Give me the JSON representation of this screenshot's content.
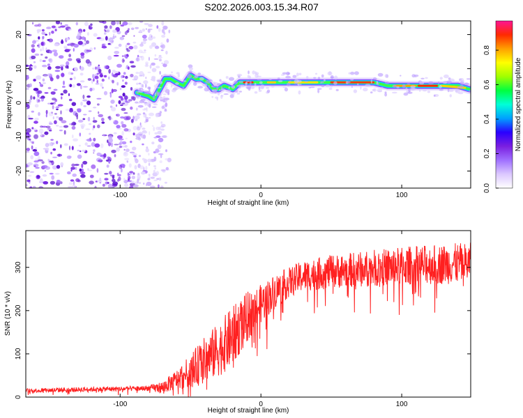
{
  "title": "S202.2026.003.15.34.R07",
  "chart_data": [
    {
      "type": "heatmap",
      "name": "spectrogram",
      "xlabel": "Height of straight line (km)",
      "ylabel": "Frequency (Hz)",
      "xlim": [
        -167,
        149
      ],
      "ylim": [
        -25,
        24
      ],
      "xticks": [
        -100,
        0,
        100
      ],
      "xtick_labels": [
        "-100",
        "0",
        "100"
      ],
      "yticks": [
        -20,
        -10,
        0,
        10,
        20
      ],
      "ytick_labels": [
        "-20",
        "-10",
        "0",
        "10",
        "20"
      ],
      "colorbar": {
        "label": "Normalized spectral amplitude",
        "range": [
          0,
          0.97
        ],
        "ticks": [
          0.0,
          0.2,
          0.4,
          0.6,
          0.8
        ],
        "tick_labels": [
          "0.0",
          "0.2",
          "0.4",
          "0.6",
          "0.8"
        ],
        "colors": [
          "#ffffff",
          "#dcc8ff",
          "#a070ff",
          "#7a1fe0",
          "#2a00ff",
          "#00a0ff",
          "#00ffd8",
          "#00ff40",
          "#a0ff00",
          "#ffff00",
          "#ffa000",
          "#ff2a00",
          "#ff1493"
        ]
      },
      "noise_region_x": [
        -167,
        -90
      ],
      "ridge": [
        {
          "x": -88,
          "y": 3
        },
        {
          "x": -80,
          "y": 2
        },
        {
          "x": -76,
          "y": 1
        },
        {
          "x": -72,
          "y": 4
        },
        {
          "x": -68,
          "y": 7
        },
        {
          "x": -64,
          "y": 7
        },
        {
          "x": -60,
          "y": 6
        },
        {
          "x": -55,
          "y": 5
        },
        {
          "x": -50,
          "y": 8
        },
        {
          "x": -46,
          "y": 7
        },
        {
          "x": -42,
          "y": 7
        },
        {
          "x": -38,
          "y": 6
        },
        {
          "x": -34,
          "y": 4
        },
        {
          "x": -30,
          "y": 4
        },
        {
          "x": -26,
          "y": 5
        },
        {
          "x": -20,
          "y": 4
        },
        {
          "x": -15,
          "y": 6
        },
        {
          "x": -8,
          "y": 6
        },
        {
          "x": 0,
          "y": 6
        },
        {
          "x": 10,
          "y": 6
        },
        {
          "x": 20,
          "y": 6
        },
        {
          "x": 30,
          "y": 6
        },
        {
          "x": 40,
          "y": 6
        },
        {
          "x": 50,
          "y": 6
        },
        {
          "x": 60,
          "y": 6
        },
        {
          "x": 70,
          "y": 6
        },
        {
          "x": 80,
          "y": 6
        },
        {
          "x": 90,
          "y": 5
        },
        {
          "x": 100,
          "y": 5
        },
        {
          "x": 110,
          "y": 5
        },
        {
          "x": 120,
          "y": 5
        },
        {
          "x": 130,
          "y": 5
        },
        {
          "x": 140,
          "y": 5
        },
        {
          "x": 148,
          "y": 4
        }
      ]
    },
    {
      "type": "line",
      "name": "snr",
      "color": "#ff2020",
      "xlabel": "Height of straight line (km)",
      "ylabel": "SNR (10 * v/v)",
      "xlim": [
        -167,
        149
      ],
      "ylim": [
        0,
        385
      ],
      "xticks": [
        -100,
        0,
        100
      ],
      "xtick_labels": [
        "-100",
        "0",
        "100"
      ],
      "yticks": [
        0,
        100,
        200,
        300
      ],
      "ytick_labels": [
        "0",
        "100",
        "200",
        "300"
      ],
      "trend": [
        {
          "x": -167,
          "y": 15
        },
        {
          "x": -120,
          "y": 18
        },
        {
          "x": -85,
          "y": 20
        },
        {
          "x": -70,
          "y": 22
        },
        {
          "x": -60,
          "y": 40
        },
        {
          "x": -50,
          "y": 60
        },
        {
          "x": -40,
          "y": 85
        },
        {
          "x": -30,
          "y": 110
        },
        {
          "x": -20,
          "y": 140
        },
        {
          "x": -10,
          "y": 185
        },
        {
          "x": 0,
          "y": 215
        },
        {
          "x": 10,
          "y": 245
        },
        {
          "x": 20,
          "y": 265
        },
        {
          "x": 30,
          "y": 280
        },
        {
          "x": 50,
          "y": 290
        },
        {
          "x": 80,
          "y": 298
        },
        {
          "x": 110,
          "y": 305
        },
        {
          "x": 149,
          "y": 310
        }
      ],
      "spread": [
        {
          "x": -167,
          "y": 10
        },
        {
          "x": -80,
          "y": 12
        },
        {
          "x": -60,
          "y": 45
        },
        {
          "x": -40,
          "y": 110
        },
        {
          "x": -20,
          "y": 140
        },
        {
          "x": 0,
          "y": 90
        },
        {
          "x": 20,
          "y": 70
        },
        {
          "x": 60,
          "y": 80
        },
        {
          "x": 100,
          "y": 90
        },
        {
          "x": 149,
          "y": 95
        }
      ]
    }
  ]
}
